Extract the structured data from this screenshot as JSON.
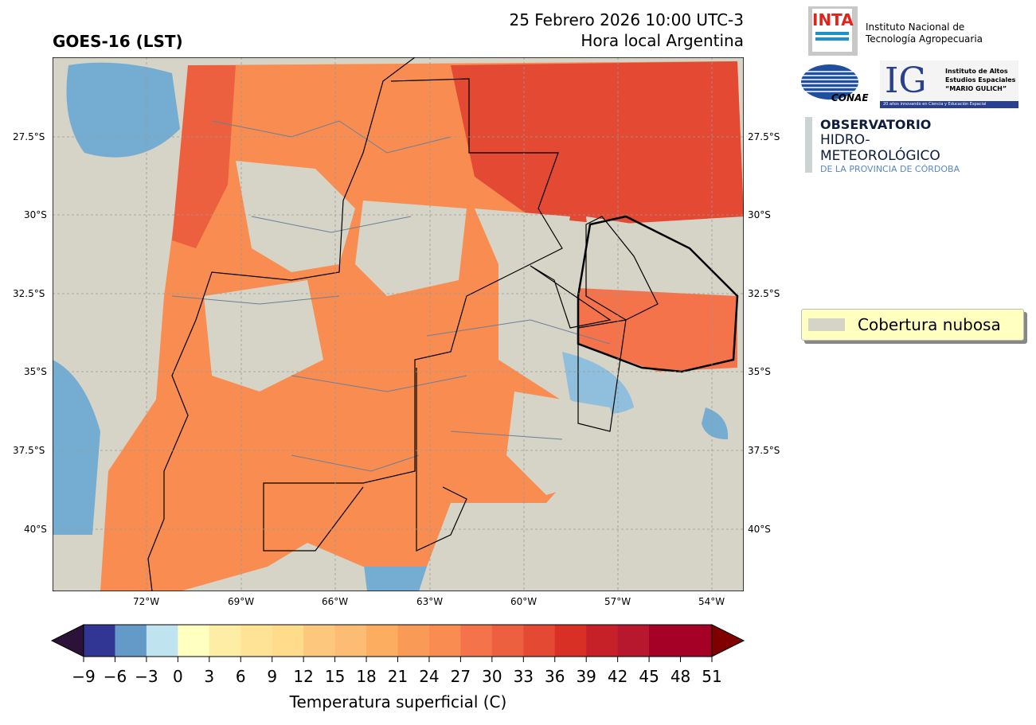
{
  "header": {
    "title": "GOES-16 (LST)",
    "date_line1": "25 Febrero 2026 10:00 UTC-3",
    "date_line2": "Hora local Argentina"
  },
  "logos": {
    "inta": {
      "mark": "INTA",
      "line1": "Instituto Nacional de",
      "line2": "Tecnología Agropecuaria"
    },
    "conae": {
      "mark": "CONAE"
    },
    "ig": {
      "mark": "IG",
      "line1": "Instituto de Altos",
      "line2": "Estudios Espaciales",
      "line3": "“MARIO GULICH”",
      "tagline": "20 años innovando en Ciencia y Educación Espacial"
    },
    "observatorio": {
      "line1": "OBSERVATORIO",
      "line2": "HIDRO-METEOROLÓGICO",
      "line3": "DE LA PROVINCIA DE CÓRDOBA"
    }
  },
  "map": {
    "lon_ticks": [
      "72°W",
      "69°W",
      "66°W",
      "63°W",
      "60°W",
      "57°W",
      "54°W"
    ],
    "lat_ticks": [
      "27.5°S",
      "30°S",
      "32.5°S",
      "35°S",
      "37.5°S",
      "40°S"
    ],
    "colors": {
      "cloud": "#d6d4c6",
      "ocean_cold": "#74add1",
      "warm": "#f88c51",
      "hot": "#e34933",
      "border": "#000000",
      "department": "#6b7f96"
    }
  },
  "legend": {
    "label": "Cobertura nubosa",
    "color": "#d6d4c6",
    "bg": "#ffffbf"
  },
  "colorbar": {
    "label": "Temperatura superficial (C)",
    "ticks": [
      "−9",
      "−6",
      "−3",
      "0",
      "3",
      "6",
      "9",
      "12",
      "15",
      "18",
      "21",
      "24",
      "27",
      "30",
      "33",
      "36",
      "39",
      "42",
      "45",
      "48",
      "51"
    ],
    "colors": [
      "#313695",
      "#649ac7",
      "#bfe3ef",
      "#ffffc0",
      "#feeda4",
      "#fee396",
      "#fedc8c",
      "#fdc87e",
      "#fdbc73",
      "#fdad60",
      "#f99a57",
      "#f88c51",
      "#f4734a",
      "#ec6040",
      "#e34933",
      "#d93025",
      "#c62128",
      "#b8182d",
      "#a50026",
      "#a50026"
    ],
    "under": "#2a1238",
    "over": "#800000"
  }
}
